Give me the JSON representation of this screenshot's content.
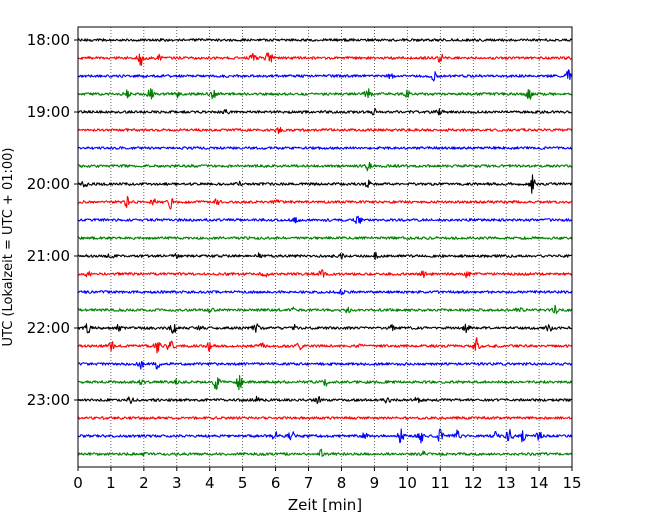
{
  "chart_data": {
    "type": "line",
    "xlabel": "Zeit  [min]",
    "ylabel": "UTC (Lokalzeit = UTC + 01:00)",
    "xlim": [
      0,
      15
    ],
    "x_ticks": [
      "0",
      "1",
      "2",
      "3",
      "4",
      "5",
      "6",
      "7",
      "8",
      "9",
      "10",
      "11",
      "12",
      "13",
      "14",
      "15"
    ],
    "y_ticks": [
      "18:00",
      "19:00",
      "20:00",
      "21:00",
      "22:00",
      "23:00"
    ],
    "grid": "vertical dotted",
    "series_colors": [
      "#000000",
      "#ff0000",
      "#0000ff",
      "#008000"
    ],
    "traces": [
      {
        "start": "18:00",
        "color": "#000000",
        "events": []
      },
      {
        "start": "18:15",
        "color": "#ff0000",
        "events": [
          [
            1.9,
            7
          ],
          [
            5.8,
            8
          ],
          [
            2.5,
            3
          ],
          [
            5.3,
            4
          ],
          [
            11.0,
            4
          ]
        ]
      },
      {
        "start": "18:30",
        "color": "#0000ff",
        "events": [
          [
            10.8,
            4
          ],
          [
            14.9,
            5
          ],
          [
            9.5,
            2
          ]
        ]
      },
      {
        "start": "18:45",
        "color": "#008000",
        "events": [
          [
            2.2,
            5
          ],
          [
            4.1,
            5
          ],
          [
            8.8,
            5
          ],
          [
            13.7,
            5
          ],
          [
            1.5,
            3
          ],
          [
            3.0,
            3
          ],
          [
            10.0,
            3
          ]
        ]
      },
      {
        "start": "19:00",
        "color": "#000000",
        "events": [
          [
            9.0,
            3
          ],
          [
            11.0,
            3
          ],
          [
            4.5,
            2
          ]
        ]
      },
      {
        "start": "19:15",
        "color": "#ff0000",
        "events": [
          [
            6.1,
            5
          ]
        ]
      },
      {
        "start": "19:30",
        "color": "#0000ff",
        "events": []
      },
      {
        "start": "19:45",
        "color": "#008000",
        "events": [
          [
            8.8,
            4
          ]
        ]
      },
      {
        "start": "20:00",
        "color": "#000000",
        "events": [
          [
            13.8,
            9
          ],
          [
            0.2,
            3
          ],
          [
            8.8,
            3
          ],
          [
            4.9,
            2
          ]
        ]
      },
      {
        "start": "20:15",
        "color": "#ff0000",
        "events": [
          [
            1.5,
            5
          ],
          [
            2.8,
            6
          ],
          [
            2.3,
            3
          ],
          [
            4.2,
            2
          ],
          [
            6.0,
            2
          ]
        ]
      },
      {
        "start": "20:30",
        "color": "#0000ff",
        "events": [
          [
            8.5,
            6
          ],
          [
            6.6,
            2
          ]
        ]
      },
      {
        "start": "20:45",
        "color": "#008000",
        "events": []
      },
      {
        "start": "21:00",
        "color": "#000000",
        "events": [
          [
            9.0,
            4
          ],
          [
            8.0,
            3
          ],
          [
            1.0,
            2
          ],
          [
            3.0,
            2
          ],
          [
            5.5,
            2
          ]
        ]
      },
      {
        "start": "21:15",
        "color": "#ff0000",
        "events": [
          [
            7.4,
            4
          ],
          [
            5.7,
            4
          ],
          [
            10.5,
            3
          ],
          [
            11.8,
            3
          ],
          [
            0.3,
            2
          ]
        ]
      },
      {
        "start": "21:30",
        "color": "#0000ff",
        "events": [
          [
            8.0,
            2
          ]
        ]
      },
      {
        "start": "21:45",
        "color": "#008000",
        "events": [
          [
            8.2,
            3
          ],
          [
            13.4,
            3
          ],
          [
            14.5,
            4
          ],
          [
            4.0,
            2
          ],
          [
            6.5,
            2
          ]
        ]
      },
      {
        "start": "22:00",
        "color": "#000000",
        "events": [
          [
            0.3,
            4
          ],
          [
            1.2,
            3
          ],
          [
            2.9,
            5
          ],
          [
            5.4,
            4
          ],
          [
            6.6,
            3
          ],
          [
            9.5,
            3
          ],
          [
            11.8,
            4
          ],
          [
            14.3,
            3
          ],
          [
            3.7,
            2
          ]
        ]
      },
      {
        "start": "22:15",
        "color": "#ff0000",
        "events": [
          [
            1.0,
            5
          ],
          [
            2.4,
            6
          ],
          [
            2.8,
            8
          ],
          [
            4.0,
            4
          ],
          [
            6.7,
            4
          ],
          [
            12.1,
            8
          ],
          [
            5.6,
            3
          ],
          [
            8.5,
            3
          ]
        ]
      },
      {
        "start": "22:30",
        "color": "#0000ff",
        "events": [
          [
            1.9,
            4
          ],
          [
            2.4,
            5
          ]
        ]
      },
      {
        "start": "22:45",
        "color": "#008000",
        "events": [
          [
            1.9,
            4
          ],
          [
            4.2,
            7
          ],
          [
            4.9,
            7
          ],
          [
            7.5,
            4
          ],
          [
            3.0,
            2
          ]
        ]
      },
      {
        "start": "23:00",
        "color": "#000000",
        "events": [
          [
            1.6,
            3
          ],
          [
            5.4,
            3
          ],
          [
            7.3,
            3
          ],
          [
            9.4,
            3
          ],
          [
            10.3,
            2
          ]
        ]
      },
      {
        "start": "23:15",
        "color": "#ff0000",
        "events": []
      },
      {
        "start": "23:30",
        "color": "#0000ff",
        "events": [
          [
            6.0,
            5
          ],
          [
            6.5,
            6
          ],
          [
            9.8,
            6
          ],
          [
            10.4,
            6
          ],
          [
            11.0,
            6
          ],
          [
            11.5,
            5
          ],
          [
            12.7,
            5
          ],
          [
            13.1,
            7
          ],
          [
            13.5,
            5
          ],
          [
            14.0,
            4
          ],
          [
            8.7,
            3
          ]
        ]
      },
      {
        "start": "23:45",
        "color": "#008000",
        "events": [
          [
            7.4,
            4
          ],
          [
            2.0,
            2
          ],
          [
            10.5,
            2
          ]
        ]
      }
    ]
  }
}
